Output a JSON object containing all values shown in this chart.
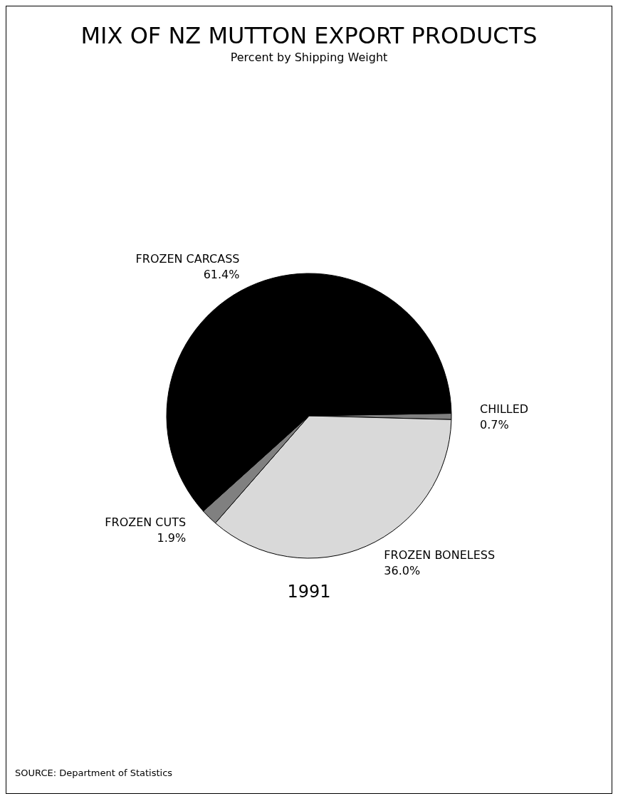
{
  "chart_data": {
    "type": "pie",
    "title": "MIX OF NZ MUTTON EXPORT PRODUCTS",
    "subtitle": "Percent by Shipping Weight",
    "categories": [
      "CHILLED",
      "FROZEN BONELESS",
      "FROZEN CUTS",
      "FROZEN CARCASS"
    ],
    "values": [
      0.7,
      36.0,
      1.9,
      61.4
    ],
    "value_labels": [
      "0.7%",
      "36.0%",
      "1.9%",
      "61.4%"
    ],
    "colors": [
      "#808080",
      "#d9d9d9",
      "#808080",
      "#000000"
    ],
    "annotations": [
      "1991",
      "SOURCE: Department of Statistics"
    ],
    "legend": false
  }
}
